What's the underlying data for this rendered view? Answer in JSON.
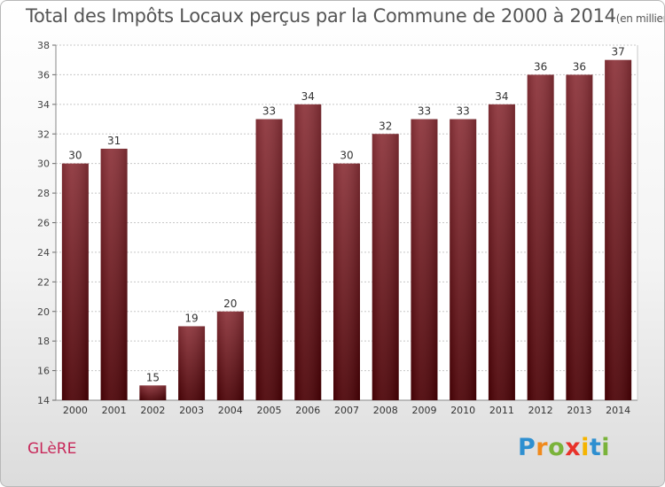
{
  "chart_data": {
    "type": "bar",
    "title": "Total des Impôts Locaux perçus par la Commune de 2000 à 2014",
    "unit_note": "(en milliers d'€)",
    "categories": [
      "2000",
      "2001",
      "2002",
      "2003",
      "2004",
      "2005",
      "2006",
      "2007",
      "2008",
      "2009",
      "2010",
      "2011",
      "2012",
      "2013",
      "2014"
    ],
    "values": [
      30,
      31,
      15,
      19,
      20,
      33,
      34,
      30,
      32,
      33,
      33,
      34,
      36,
      36,
      37
    ],
    "ylim": [
      14,
      38
    ],
    "yticks": [
      14,
      16,
      18,
      20,
      22,
      24,
      26,
      28,
      30,
      32,
      34,
      36,
      38
    ],
    "grid": true,
    "bar_color_top": "#8b3138",
    "bar_color_bottom": "#4a0004",
    "xlabel": "",
    "ylabel": ""
  },
  "commune": "GLèRE",
  "brand": {
    "letters": [
      "P",
      "r",
      "o",
      "x",
      "i",
      "t",
      "i"
    ],
    "colors": [
      "#2e8fd0",
      "#f08a1c",
      "#7ab33a",
      "#e8322a",
      "#f5b400",
      "#2e8fd0",
      "#7ab33a"
    ]
  }
}
